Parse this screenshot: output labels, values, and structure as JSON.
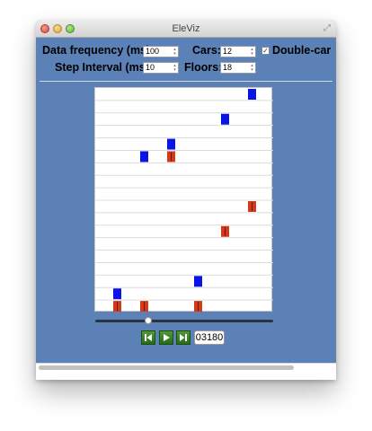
{
  "window": {
    "title": "EleViz"
  },
  "controls": {
    "data_frequency_label": "Data frequency (ms):",
    "data_frequency_value": "100",
    "cars_label": "Cars:",
    "cars_value": "12",
    "double_car_label": "Double-car",
    "double_car_checked": true,
    "step_interval_label": "Step Interval (ms):",
    "step_interval_value": "10",
    "floors_label": "Floors:",
    "floors_value": "18"
  },
  "simulation": {
    "floors": 18,
    "cars": 6,
    "upper_car_color": "#0a14e6",
    "lower_car_color": "#d43a17",
    "car_positions": [
      {
        "car": 1,
        "upper_floor": 2,
        "lower_floor": 1
      },
      {
        "car": 2,
        "upper_floor": 13,
        "lower_floor": 1
      },
      {
        "car": 3,
        "upper_floor": 14,
        "lower_floor": 13
      },
      {
        "car": 4,
        "upper_floor": 3,
        "lower_floor": 1
      },
      {
        "car": 5,
        "upper_floor": 16,
        "lower_floor": 7
      },
      {
        "car": 6,
        "upper_floor": 18,
        "lower_floor": 9
      }
    ]
  },
  "playback": {
    "progress": 0.3,
    "rewind_icon": "skip-back-icon",
    "play_icon": "play-icon",
    "forward_icon": "skip-forward-icon",
    "counter": "03180"
  }
}
